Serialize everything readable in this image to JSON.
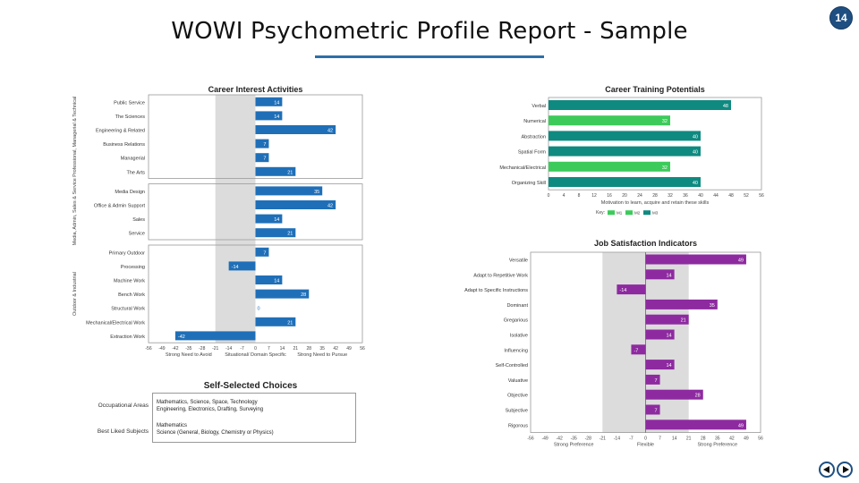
{
  "header": {
    "title": "WOWI Psychometric Profile Report - Sample",
    "page_number": "14"
  },
  "colors": {
    "interest_bar": "#1f6fb8",
    "training_dark": "#0f8a80",
    "training_light": "#3ccb5a",
    "satisfaction_bar": "#8e2aa0",
    "band": "#dcdcdc",
    "title_rule": "#2e6fa7"
  },
  "chart_data": [
    {
      "type": "bar",
      "orientation": "horizontal",
      "title": "Career Interest Activities",
      "groups": [
        {
          "label": "Professional, Managerial & Technical",
          "categories": [
            "Public Service",
            "The Sciences",
            "Engineering & Related",
            "Business Relations",
            "Managerial",
            "The Arts"
          ],
          "values": [
            14,
            14,
            42,
            7,
            7,
            21
          ]
        },
        {
          "label": "Media, Admin, Sales & Service",
          "categories": [
            "Media Design",
            "Office & Admin Support",
            "Sales",
            "Service"
          ],
          "values": [
            35,
            42,
            14,
            21
          ]
        },
        {
          "label": "Outdoor & Industrial",
          "categories": [
            "Primary Outdoor",
            "Processing",
            "Machine Work",
            "Bench Work",
            "Structural Work",
            "Mechanical/Electrical Work",
            "Extraction Work"
          ],
          "values": [
            7,
            -14,
            14,
            28,
            0,
            21,
            -42
          ]
        }
      ],
      "xlim": [
        -56,
        56
      ],
      "xticks": [
        "-56",
        "-49",
        "-42",
        "-35",
        "-28",
        "-21",
        "-14",
        "-7",
        "0",
        "7",
        "14",
        "21",
        "28",
        "35",
        "42",
        "49",
        "56"
      ],
      "axis_notes": [
        "Strong Need to Avoid",
        "Situational/ Domain Specific",
        "Strong Need to Pursue"
      ]
    },
    {
      "type": "bar",
      "orientation": "horizontal",
      "title": "Career Training Potentials",
      "categories": [
        "Verbal",
        "Numerical",
        "Abstraction",
        "Spatial Form",
        "Mechanical/Electrical",
        "Organizing Skill"
      ],
      "values": [
        48,
        32,
        40,
        40,
        32,
        40
      ],
      "xlim": [
        0,
        56
      ],
      "xticks": [
        "0",
        "4",
        "8",
        "12",
        "16",
        "20",
        "24",
        "28",
        "32",
        "36",
        "40",
        "44",
        "48",
        "52",
        "56"
      ],
      "xlabel": "Motivation to learn, acquire and retain these skills",
      "legend": {
        "key_label": "Key:",
        "items": [
          "M1",
          "M2",
          "M3"
        ]
      }
    },
    {
      "type": "bar",
      "orientation": "horizontal",
      "title": "Job Satisfaction Indicators",
      "categories": [
        "Versatile",
        "Adapt to Repetitive Work",
        "Adapt to Specific Instructions",
        "Dominant",
        "Gregarious",
        "Isolative",
        "Influencing",
        "Self-Controlled",
        "Valuative",
        "Objective",
        "Subjective",
        "Rigorous"
      ],
      "values": [
        49,
        14,
        -14,
        35,
        21,
        14,
        -7,
        14,
        7,
        28,
        7,
        49
      ],
      "xlim": [
        -56,
        56
      ],
      "xticks": [
        "-56",
        "-49",
        "-42",
        "-35",
        "-28",
        "-21",
        "-14",
        "-7",
        "0",
        "7",
        "14",
        "21",
        "28",
        "35",
        "42",
        "49",
        "56"
      ],
      "axis_notes": [
        "Strong Preference",
        "Flexible",
        "Strong Preference"
      ]
    }
  ],
  "self_selected": {
    "title": "Self-Selected Choices",
    "rows": [
      {
        "label": "Occupational Areas",
        "lines": [
          "Mathematics, Science, Space, Technology",
          "Engineering, Electronics, Drafting, Surveying"
        ]
      },
      {
        "label": "Best Liked Subjects",
        "lines": [
          "Mathematics",
          "Science (General, Biology, Chemistry or Physics)"
        ]
      }
    ]
  }
}
